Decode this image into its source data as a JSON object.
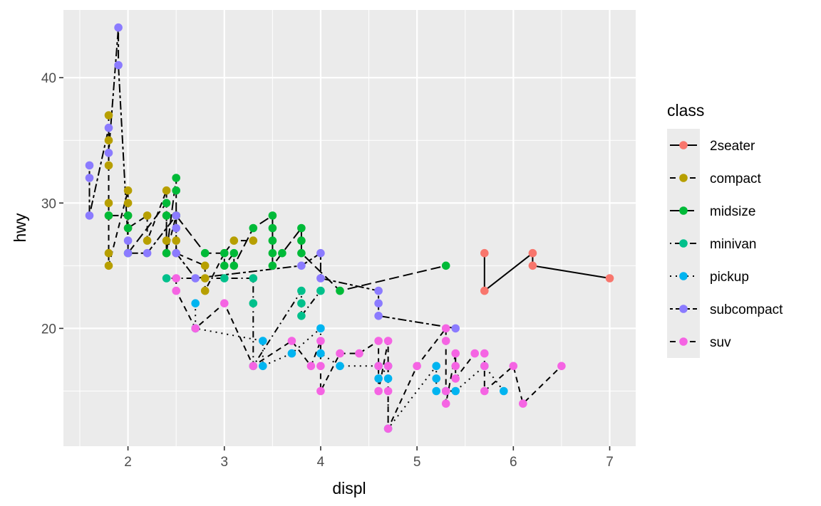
{
  "chart_data": {
    "type": "line",
    "title": "",
    "xlabel": "displ",
    "ylabel": "hwy",
    "xlim": [
      1.33,
      7.27
    ],
    "ylim": [
      10.6,
      45.4
    ],
    "x_ticks": [
      "2",
      "3",
      "4",
      "5",
      "6",
      "7"
    ],
    "y_ticks": [
      "20",
      "30",
      "40"
    ],
    "x_tick_values": [
      2,
      3,
      4,
      5,
      6,
      7
    ],
    "y_tick_values": [
      20,
      30,
      40
    ],
    "x_minor_values": [
      1.5,
      2.5,
      3.5,
      4.5,
      5.5,
      6.5
    ],
    "y_minor_values": [
      15,
      25,
      35
    ],
    "grid": true,
    "panel_color": "#EBEBEB",
    "legend": {
      "title": "class",
      "position": "right"
    },
    "series": [
      {
        "name": "2seater",
        "color": "#F8766D",
        "linetype": "solid",
        "points": [
          [
            5.7,
            26
          ],
          [
            5.7,
            23
          ],
          [
            6.2,
            26
          ],
          [
            6.2,
            25
          ],
          [
            7.0,
            24
          ]
        ]
      },
      {
        "name": "compact",
        "color": "#B79F00",
        "linetype": "dashed",
        "points": [
          [
            1.8,
            37
          ],
          [
            1.8,
            35
          ],
          [
            1.8,
            33
          ],
          [
            1.8,
            30
          ],
          [
            1.8,
            29
          ],
          [
            1.8,
            26
          ],
          [
            1.8,
            25
          ],
          [
            2.0,
            31
          ],
          [
            2.0,
            30
          ],
          [
            2.0,
            29
          ],
          [
            2.0,
            28
          ],
          [
            2.2,
            29
          ],
          [
            2.2,
            27
          ],
          [
            2.4,
            31
          ],
          [
            2.4,
            29
          ],
          [
            2.4,
            27
          ],
          [
            2.4,
            26
          ],
          [
            2.5,
            29
          ],
          [
            2.5,
            27
          ],
          [
            2.5,
            26
          ],
          [
            2.8,
            25
          ],
          [
            2.8,
            24
          ],
          [
            2.8,
            23
          ],
          [
            3.0,
            26
          ],
          [
            3.1,
            27
          ],
          [
            3.3,
            27
          ]
        ]
      },
      {
        "name": "midsize",
        "color": "#00BA38",
        "linetype": "longdash",
        "points": [
          [
            1.8,
            29
          ],
          [
            2.0,
            29
          ],
          [
            2.0,
            28
          ],
          [
            2.0,
            26
          ],
          [
            2.4,
            30
          ],
          [
            2.4,
            29
          ],
          [
            2.4,
            26
          ],
          [
            2.5,
            32
          ],
          [
            2.5,
            31
          ],
          [
            2.5,
            29
          ],
          [
            2.8,
            26
          ],
          [
            3.0,
            26
          ],
          [
            3.0,
            25
          ],
          [
            3.1,
            26
          ],
          [
            3.1,
            25
          ],
          [
            3.3,
            28
          ],
          [
            3.5,
            29
          ],
          [
            3.5,
            28
          ],
          [
            3.5,
            27
          ],
          [
            3.5,
            26
          ],
          [
            3.5,
            25
          ],
          [
            3.6,
            26
          ],
          [
            3.8,
            28
          ],
          [
            3.8,
            27
          ],
          [
            3.8,
            26
          ],
          [
            4.2,
            23
          ],
          [
            5.3,
            25
          ]
        ]
      },
      {
        "name": "minivan",
        "color": "#00C08B",
        "linetype": "dotdash",
        "points": [
          [
            2.4,
            24
          ],
          [
            3.0,
            24
          ],
          [
            3.3,
            24
          ],
          [
            3.3,
            22
          ],
          [
            3.3,
            17
          ],
          [
            3.8,
            23
          ],
          [
            3.8,
            22
          ],
          [
            3.8,
            21
          ],
          [
            4.0,
            23
          ]
        ]
      },
      {
        "name": "pickup",
        "color": "#00B4F0",
        "linetype": "dotted",
        "points": [
          [
            2.7,
            22
          ],
          [
            2.7,
            20
          ],
          [
            3.4,
            19
          ],
          [
            3.4,
            17
          ],
          [
            3.7,
            18
          ],
          [
            4.0,
            20
          ],
          [
            4.0,
            18
          ],
          [
            4.2,
            17
          ],
          [
            4.6,
            17
          ],
          [
            4.6,
            16
          ],
          [
            4.7,
            17
          ],
          [
            4.7,
            16
          ],
          [
            4.7,
            12
          ],
          [
            5.2,
            17
          ],
          [
            5.2,
            16
          ],
          [
            5.2,
            15
          ],
          [
            5.3,
            15
          ],
          [
            5.4,
            15
          ],
          [
            5.7,
            17
          ],
          [
            5.9,
            15
          ]
        ]
      },
      {
        "name": "subcompact",
        "color": "#8B7BFF",
        "linetype": "twodash",
        "points": [
          [
            1.6,
            33
          ],
          [
            1.6,
            32
          ],
          [
            1.6,
            29
          ],
          [
            1.8,
            36
          ],
          [
            1.8,
            34
          ],
          [
            1.9,
            44
          ],
          [
            1.9,
            41
          ],
          [
            2.0,
            27
          ],
          [
            2.0,
            26
          ],
          [
            2.2,
            26
          ],
          [
            2.5,
            29
          ],
          [
            2.5,
            28
          ],
          [
            2.5,
            26
          ],
          [
            2.7,
            24
          ],
          [
            3.8,
            25
          ],
          [
            4.0,
            26
          ],
          [
            4.0,
            24
          ],
          [
            4.6,
            23
          ],
          [
            4.6,
            22
          ],
          [
            4.6,
            21
          ],
          [
            5.4,
            20
          ]
        ]
      },
      {
        "name": "suv",
        "color": "#F564E3",
        "linetype": "dashed",
        "points": [
          [
            2.5,
            24
          ],
          [
            2.5,
            23
          ],
          [
            2.7,
            20
          ],
          [
            3.0,
            22
          ],
          [
            3.3,
            17
          ],
          [
            3.7,
            19
          ],
          [
            3.9,
            17
          ],
          [
            4.0,
            19
          ],
          [
            4.0,
            17
          ],
          [
            4.0,
            15
          ],
          [
            4.2,
            18
          ],
          [
            4.4,
            18
          ],
          [
            4.6,
            19
          ],
          [
            4.6,
            17
          ],
          [
            4.6,
            15
          ],
          [
            4.7,
            19
          ],
          [
            4.7,
            17
          ],
          [
            4.7,
            15
          ],
          [
            4.7,
            12
          ],
          [
            5.0,
            17
          ],
          [
            5.3,
            20
          ],
          [
            5.3,
            19
          ],
          [
            5.3,
            15
          ],
          [
            5.3,
            14
          ],
          [
            5.4,
            18
          ],
          [
            5.4,
            17
          ],
          [
            5.4,
            16
          ],
          [
            5.6,
            18
          ],
          [
            5.7,
            18
          ],
          [
            5.7,
            17
          ],
          [
            5.7,
            15
          ],
          [
            6.0,
            17
          ],
          [
            6.1,
            14
          ],
          [
            6.5,
            17
          ]
        ]
      }
    ]
  }
}
